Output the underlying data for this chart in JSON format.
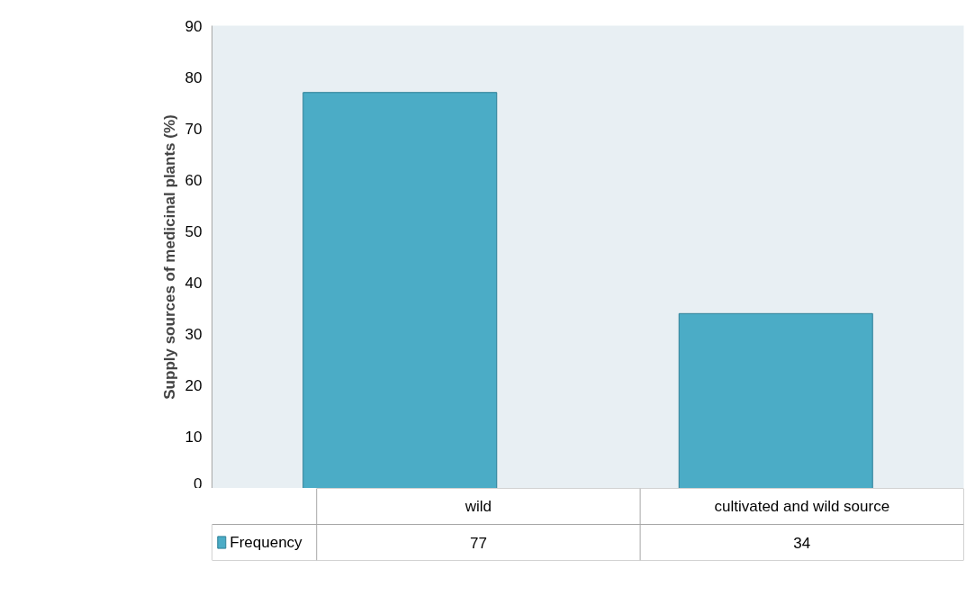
{
  "chart_data": {
    "type": "bar",
    "ylabel": "Supply sources of medicinal plants (%)",
    "categories": [
      "wild",
      "cultivated and wild source"
    ],
    "series": [
      {
        "name": "Frequency",
        "color": "#4bacc6",
        "values": [
          77,
          34
        ]
      }
    ],
    "ylim": [
      0,
      90
    ],
    "yticks": [
      0,
      10,
      20,
      30,
      40,
      50,
      60,
      70,
      80,
      90
    ],
    "grid": false,
    "legend": "bottom",
    "data_labels": true
  }
}
